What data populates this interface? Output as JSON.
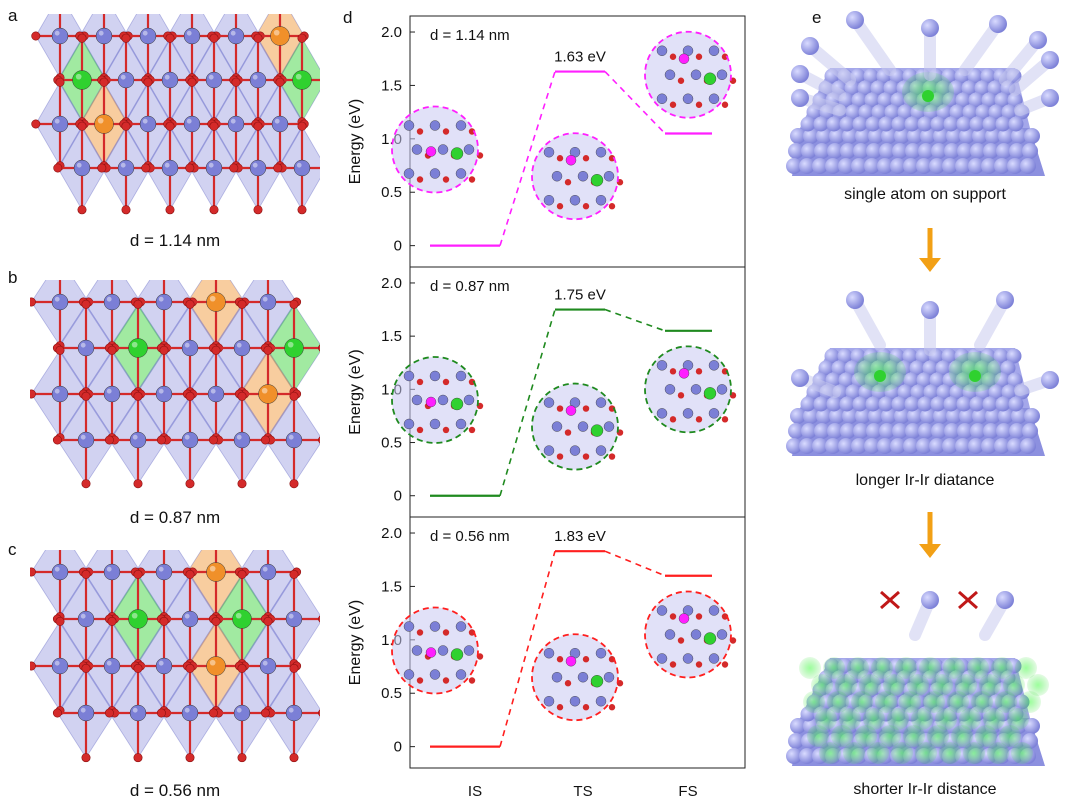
{
  "panels": {
    "a": {
      "letter": "a",
      "distance_label": "d = 1.14 nm"
    },
    "b": {
      "letter": "b",
      "distance_label": "d = 0.87 nm"
    },
    "c": {
      "letter": "c",
      "distance_label": "d = 0.56 nm"
    },
    "d": {
      "letter": "d"
    },
    "e": {
      "letter": "e",
      "captions": [
        "single atom on support",
        "longer Ir-Ir diatance",
        "shorter Ir-Ir distance"
      ]
    }
  },
  "colors": {
    "ir_support": "#7b7fd6",
    "oxygen": "#d42a2a",
    "single_atom": "#2fd12f",
    "dopant": "#f0902a",
    "magenta": "#ff1fff",
    "green_line": "#1f8a1f",
    "red_line": "#ff1f1f",
    "arrow": "#f2a015"
  },
  "chart_data": [
    {
      "type": "line",
      "subplot_label": "d = 1.14 nm",
      "categories": [
        "IS",
        "TS",
        "FS"
      ],
      "values": [
        0,
        1.63,
        1.05
      ],
      "annotations": [
        "1.63 eV"
      ],
      "ylabel": "Energy (eV)",
      "yticks": [
        "0",
        "0.5",
        "1.0",
        "1.5",
        "2.0"
      ],
      "ylim": [
        -0.2,
        2.15
      ],
      "color": "#ff1fff"
    },
    {
      "type": "line",
      "subplot_label": "d = 0.87 nm",
      "categories": [
        "IS",
        "TS",
        "FS"
      ],
      "values": [
        0,
        1.75,
        1.55
      ],
      "annotations": [
        "1.75 eV"
      ],
      "ylabel": "Energy (eV)",
      "yticks": [
        "0",
        "0.5",
        "1.0",
        "1.5",
        "2.0"
      ],
      "ylim": [
        -0.2,
        2.15
      ],
      "color": "#1f8a1f"
    },
    {
      "type": "line",
      "subplot_label": "d = 0.56 nm",
      "categories": [
        "IS",
        "TS",
        "FS"
      ],
      "values": [
        0,
        1.83,
        1.6
      ],
      "annotations": [
        "1.83 eV"
      ],
      "ylabel": "Energy (eV)",
      "yticks": [
        "0",
        "0.5",
        "1.0",
        "1.5",
        "2.0"
      ],
      "ylim": [
        -0.2,
        2.15
      ],
      "color": "#ff1f1f"
    }
  ]
}
